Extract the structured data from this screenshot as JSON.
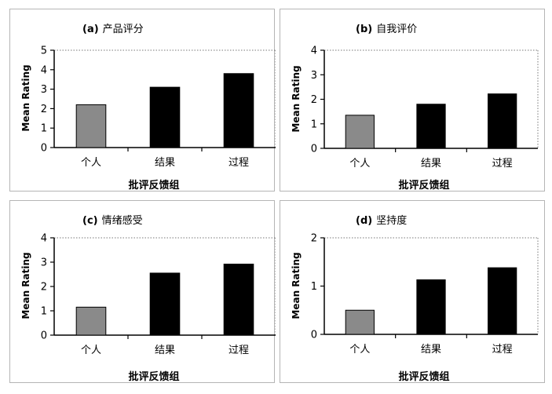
{
  "chart_data": [
    {
      "type": "bar",
      "tag": "(a)",
      "title": "产品评分",
      "categories": [
        "个人",
        "结果",
        "过程"
      ],
      "values": [
        2.2,
        3.1,
        3.8
      ],
      "ylabel": "Mean Rating",
      "xlabel": "批评反馈组",
      "ylim": [
        0,
        5
      ],
      "yticks": [
        "0",
        "1",
        "2",
        "3",
        "4",
        "5"
      ],
      "bar_colors": [
        "#8a8a8a",
        "#000000",
        "#000000"
      ]
    },
    {
      "type": "bar",
      "tag": "(b)",
      "title": "自我评价",
      "categories": [
        "个人",
        "结果",
        "过程"
      ],
      "values": [
        1.35,
        1.8,
        2.22
      ],
      "ylabel": "Mean Rating",
      "xlabel": "批评反馈组",
      "ylim": [
        0,
        4
      ],
      "yticks": [
        "0",
        "1",
        "2",
        "3",
        "4"
      ],
      "bar_colors": [
        "#8a8a8a",
        "#000000",
        "#000000"
      ]
    },
    {
      "type": "bar",
      "tag": "(c)",
      "title": "情绪感受",
      "categories": [
        "个人",
        "结果",
        "过程"
      ],
      "values": [
        1.15,
        2.55,
        2.92
      ],
      "ylabel": "Mean Rating",
      "xlabel": "批评反馈组",
      "ylim": [
        0,
        4
      ],
      "yticks": [
        "0",
        "1",
        "2",
        "3",
        "4"
      ],
      "bar_colors": [
        "#8a8a8a",
        "#000000",
        "#000000"
      ]
    },
    {
      "type": "bar",
      "tag": "(d)",
      "title": "坚持度",
      "categories": [
        "个人",
        "结果",
        "过程"
      ],
      "values": [
        0.5,
        1.13,
        1.38
      ],
      "ylabel": "Mean Rating",
      "xlabel": "批评反馈组",
      "ylim": [
        0,
        2
      ],
      "yticks": [
        "0",
        "1",
        "2"
      ],
      "bar_colors": [
        "#8a8a8a",
        "#000000",
        "#000000"
      ]
    }
  ]
}
